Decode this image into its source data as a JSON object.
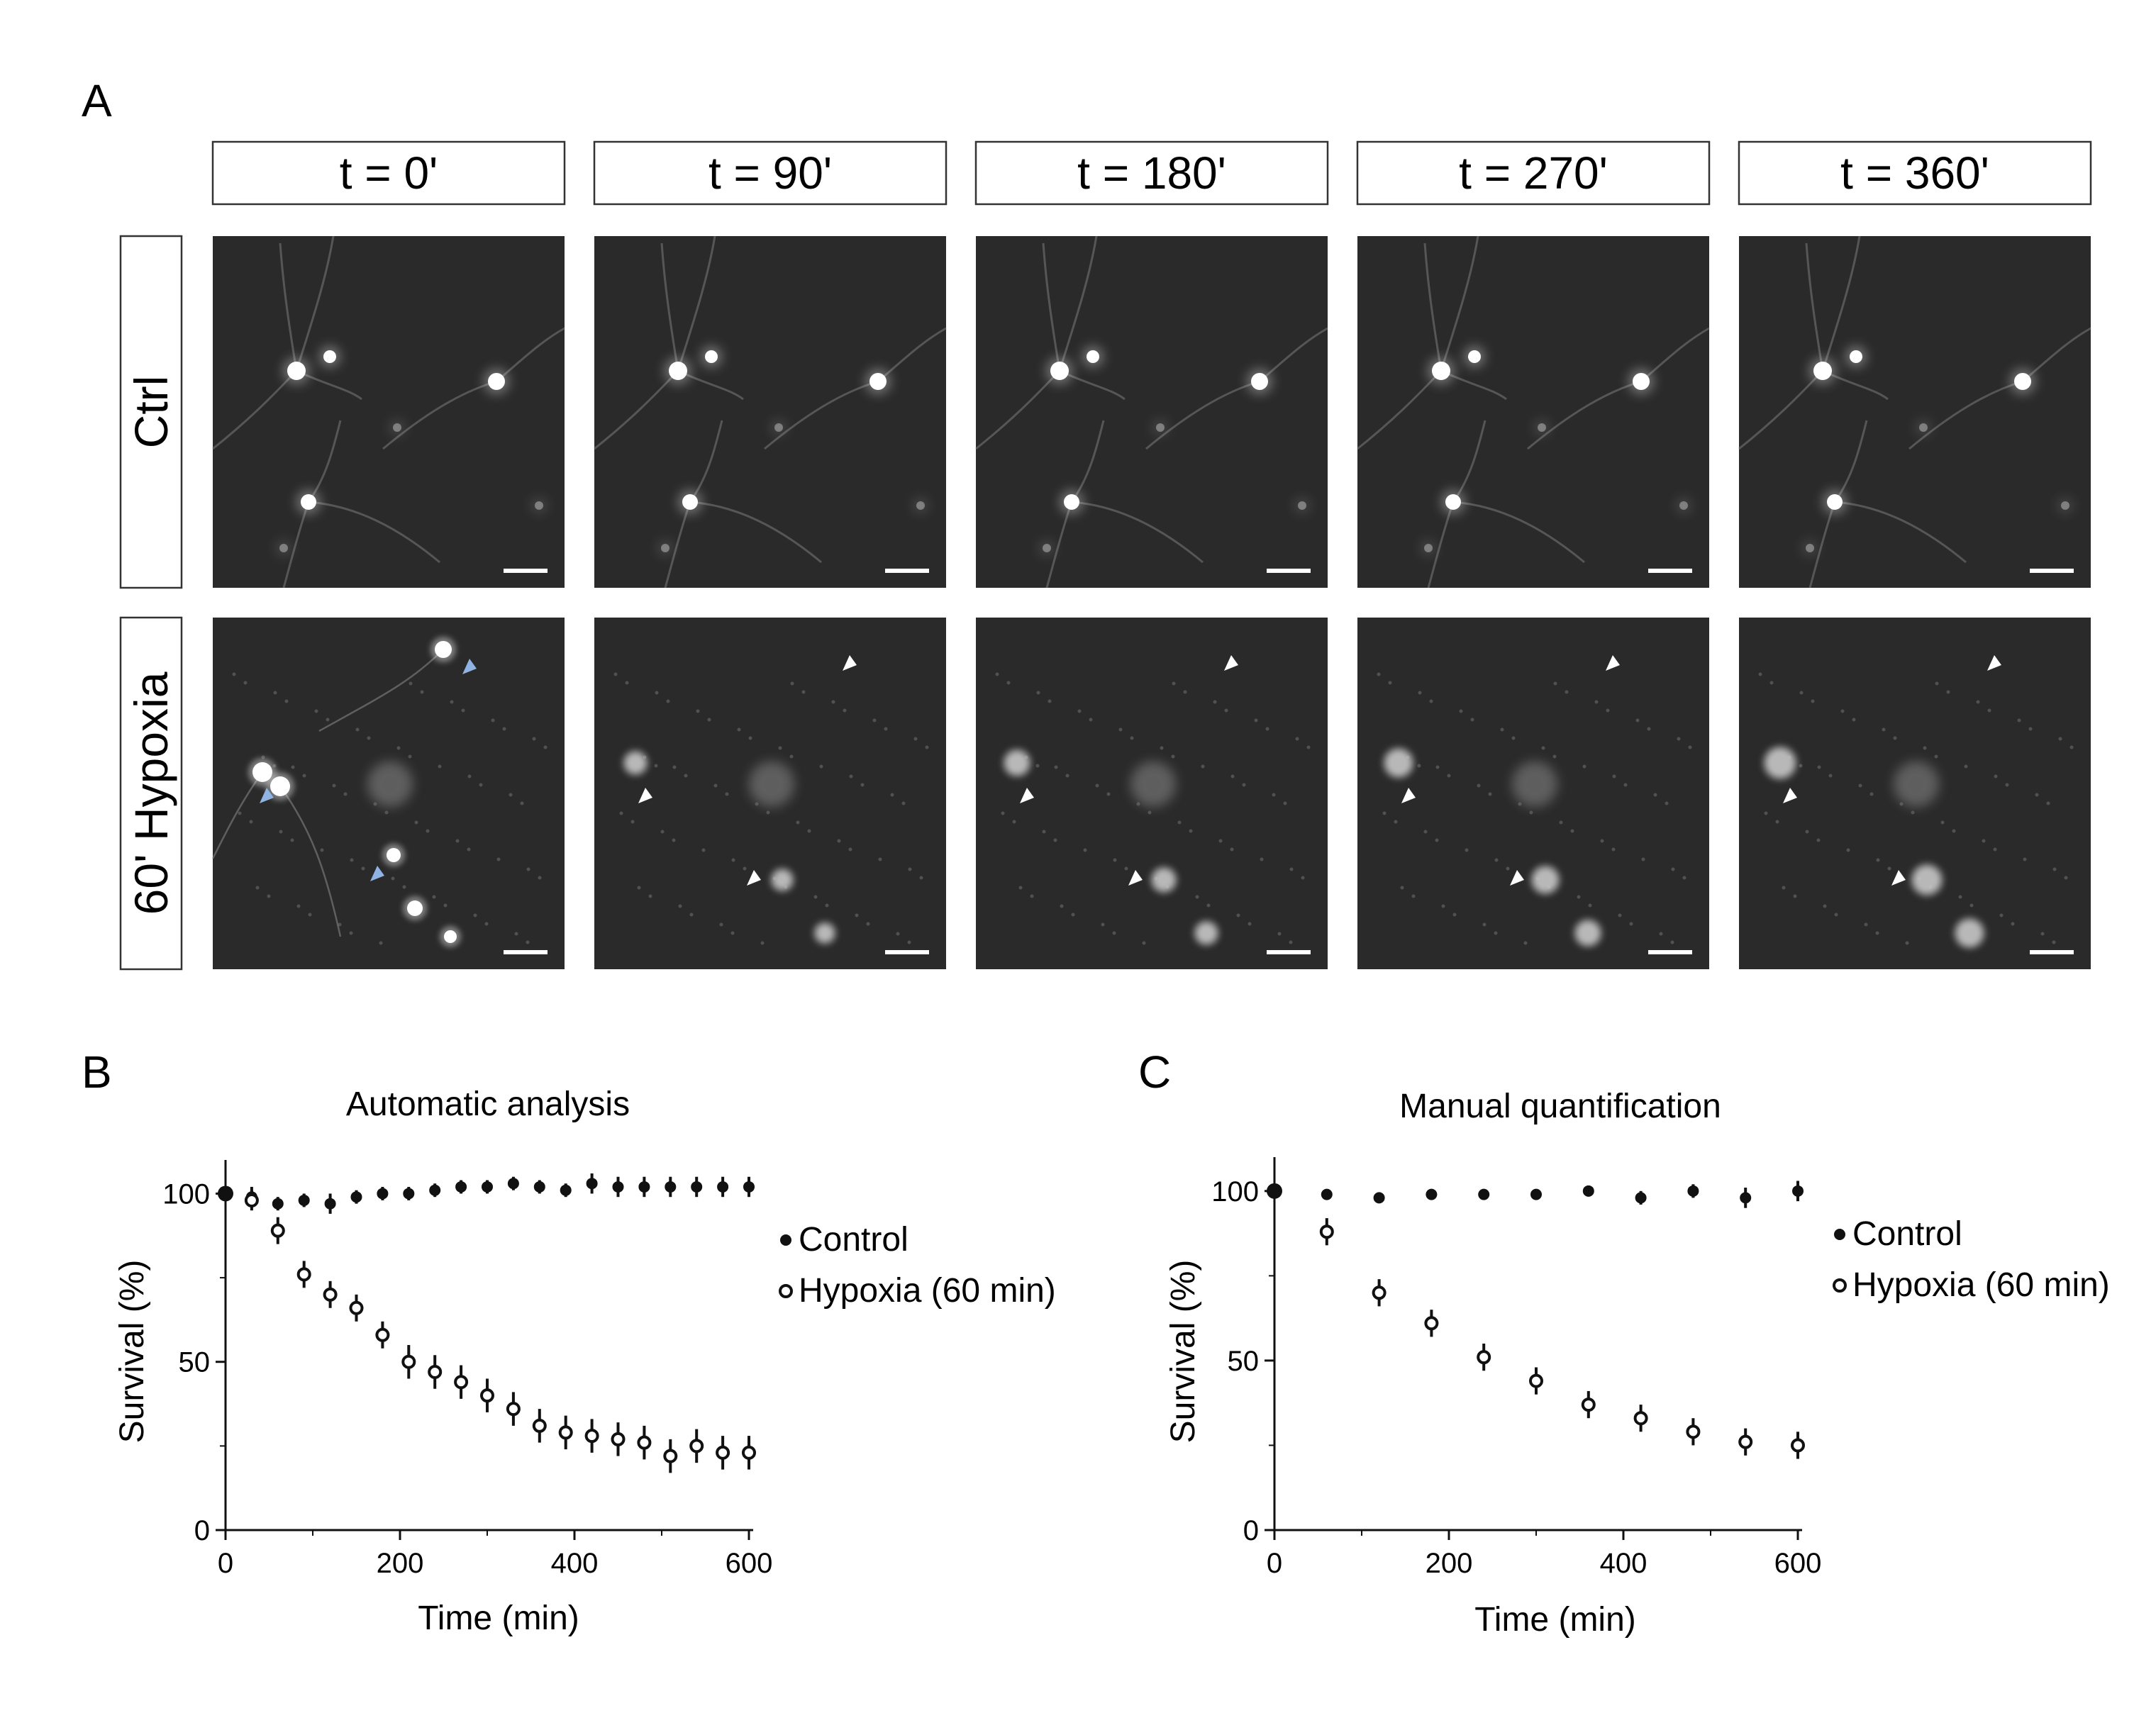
{
  "panels": {
    "a": "A",
    "b": "B",
    "c": "C"
  },
  "panel_a": {
    "time_labels": [
      "t = 0'",
      "t = 90'",
      "t = 180'",
      "t = 270'",
      "t = 360'"
    ],
    "rows": [
      {
        "label": "Ctrl"
      },
      {
        "label": "60' Hypoxia"
      }
    ],
    "colors": {
      "image_background": "#2a2a2a",
      "arrow_blue": "#8fb4e3",
      "arrow_white": "#ffffff",
      "scale_bar": "#ffffff"
    }
  },
  "chart_data": [
    {
      "type": "scatter",
      "title": "Automatic analysis",
      "xlabel": "Time (min)",
      "ylabel": "Survival (%)",
      "xlim": [
        0,
        600
      ],
      "ylim": [
        0,
        110
      ],
      "xticks": [
        0,
        200,
        400,
        600
      ],
      "yticks": [
        0,
        50,
        100
      ],
      "grid": false,
      "legend_position": "right",
      "series": [
        {
          "name": "Control",
          "marker": "filled-circle",
          "x": [
            0,
            30,
            60,
            90,
            120,
            150,
            180,
            210,
            240,
            270,
            300,
            330,
            360,
            390,
            420,
            450,
            480,
            510,
            540,
            570,
            600
          ],
          "y": [
            100,
            99,
            97,
            98,
            97,
            99,
            100,
            100,
            101,
            102,
            102,
            103,
            102,
            101,
            103,
            102,
            102,
            102,
            102,
            102,
            102
          ],
          "err": [
            0,
            3,
            2,
            2,
            3,
            2,
            2,
            2,
            2,
            2,
            2,
            2,
            2,
            2,
            3,
            3,
            3,
            3,
            3,
            3,
            3
          ]
        },
        {
          "name": "Hypoxia (60 min)",
          "marker": "open-circle",
          "x": [
            30,
            60,
            90,
            120,
            150,
            180,
            210,
            240,
            270,
            300,
            330,
            360,
            390,
            420,
            450,
            480,
            510,
            540,
            570,
            600
          ],
          "y": [
            98,
            89,
            76,
            70,
            66,
            58,
            50,
            47,
            44,
            40,
            36,
            31,
            29,
            28,
            27,
            26,
            22,
            25,
            23,
            23
          ],
          "err": [
            3,
            4,
            4,
            4,
            4,
            4,
            5,
            5,
            5,
            5,
            5,
            5,
            5,
            5,
            5,
            5,
            5,
            5,
            5,
            5
          ]
        }
      ]
    },
    {
      "type": "scatter",
      "title": "Manual quantification",
      "xlabel": "Time (min)",
      "ylabel": "Survival (%)",
      "xlim": [
        0,
        600
      ],
      "ylim": [
        0,
        110
      ],
      "xticks": [
        0,
        200,
        400,
        600
      ],
      "yticks": [
        0,
        50,
        100
      ],
      "grid": false,
      "legend_position": "right",
      "series": [
        {
          "name": "Control",
          "marker": "filled-circle",
          "x": [
            0,
            60,
            120,
            180,
            240,
            300,
            360,
            420,
            480,
            540,
            600
          ],
          "y": [
            100,
            99,
            98,
            99,
            99,
            99,
            100,
            98,
            100,
            98,
            100
          ],
          "err": [
            0,
            1,
            1,
            1,
            1,
            1,
            1,
            2,
            2,
            3,
            3
          ]
        },
        {
          "name": "Hypoxia (60 min)",
          "marker": "open-circle",
          "x": [
            60,
            120,
            180,
            240,
            300,
            360,
            420,
            480,
            540,
            600
          ],
          "y": [
            88,
            70,
            61,
            51,
            44,
            37,
            33,
            29,
            26,
            25
          ],
          "err": [
            4,
            4,
            4,
            4,
            4,
            4,
            4,
            4,
            4,
            4
          ]
        }
      ]
    }
  ]
}
